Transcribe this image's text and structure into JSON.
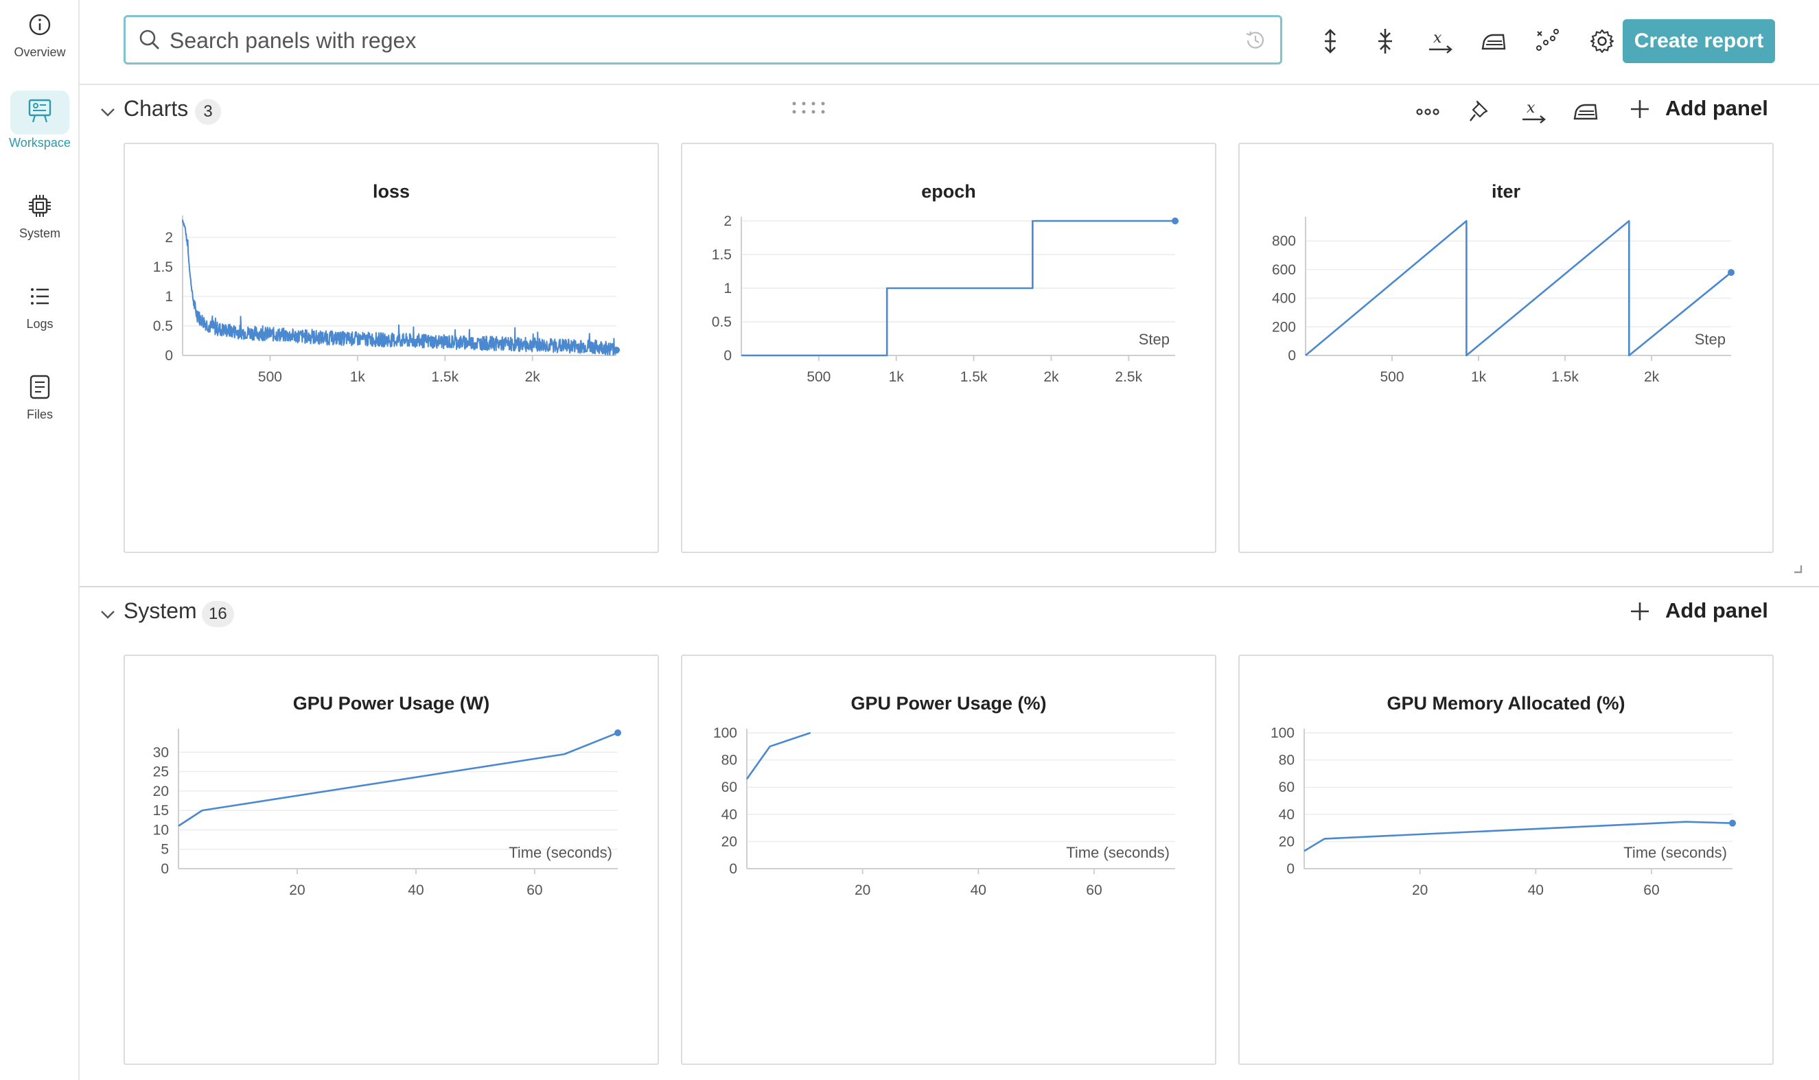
{
  "sidebar": {
    "items": [
      {
        "label": "Overview",
        "icon": "info-icon"
      },
      {
        "label": "Workspace",
        "icon": "workspace-icon",
        "active": true
      },
      {
        "label": "System",
        "icon": "chip-icon"
      },
      {
        "label": "Logs",
        "icon": "list-icon"
      },
      {
        "label": "Files",
        "icon": "file-icon"
      }
    ]
  },
  "toolbar": {
    "search_placeholder": "Search panels with regex",
    "create_report_label": "Create report",
    "accent_color": "#4eaab8"
  },
  "sections": {
    "charts": {
      "title": "Charts",
      "count": "3",
      "add_panel_label": "Add panel"
    },
    "system": {
      "title": "System",
      "count": "16",
      "add_panel_label": "Add panel"
    }
  },
  "chart_data": [
    {
      "id": "loss",
      "type": "line",
      "title": "loss",
      "xlabel": "",
      "ylabel": "",
      "xlim": [
        0,
        2480
      ],
      "ylim": [
        0,
        2.3
      ],
      "xticks": [
        {
          "v": 500,
          "t": "500"
        },
        {
          "v": 1000,
          "t": "1k"
        },
        {
          "v": 1500,
          "t": "1.5k"
        },
        {
          "v": 2000,
          "t": "2k"
        }
      ],
      "yticks": [
        {
          "v": 0,
          "t": "0"
        },
        {
          "v": 0.5,
          "t": "0.5"
        },
        {
          "v": 1,
          "t": "1"
        },
        {
          "v": 1.5,
          "t": "1.5"
        },
        {
          "v": 2,
          "t": "2"
        }
      ],
      "series": [
        {
          "x": [
            0,
            15,
            30,
            45,
            60,
            75,
            90,
            110,
            130,
            160,
            200,
            260,
            320,
            400,
            500,
            600,
            700,
            800,
            900,
            1000,
            1100,
            1200,
            1300,
            1400,
            1500,
            1600,
            1700,
            1800,
            1900,
            2000,
            2100,
            2200,
            2300,
            2380,
            2420,
            2480
          ],
          "y": [
            2.3,
            2.15,
            1.8,
            1.3,
            0.95,
            0.75,
            0.65,
            0.6,
            0.55,
            0.48,
            0.45,
            0.42,
            0.4,
            0.38,
            0.36,
            0.34,
            0.32,
            0.3,
            0.29,
            0.28,
            0.27,
            0.26,
            0.25,
            0.24,
            0.23,
            0.22,
            0.21,
            0.2,
            0.19,
            0.18,
            0.17,
            0.16,
            0.15,
            0.14,
            0.13,
            0.09
          ]
        }
      ],
      "noisy": true,
      "end_marker": true
    },
    {
      "id": "epoch",
      "type": "line",
      "title": "epoch",
      "xlabel": "Step",
      "ylabel": "",
      "xlim": [
        0,
        2800
      ],
      "ylim": [
        0,
        2
      ],
      "xticks": [
        {
          "v": 500,
          "t": "500"
        },
        {
          "v": 1000,
          "t": "1k"
        },
        {
          "v": 1500,
          "t": "1.5k"
        },
        {
          "v": 2000,
          "t": "2k"
        },
        {
          "v": 2500,
          "t": "2.5k"
        }
      ],
      "yticks": [
        {
          "v": 0,
          "t": "0"
        },
        {
          "v": 0.5,
          "t": "0.5"
        },
        {
          "v": 1,
          "t": "1"
        },
        {
          "v": 1.5,
          "t": "1.5"
        },
        {
          "v": 2,
          "t": "2"
        }
      ],
      "series": [
        {
          "x": [
            0,
            940,
            940,
            1880,
            1880,
            2800
          ],
          "y": [
            0,
            0,
            1,
            1,
            2,
            2
          ]
        }
      ],
      "end_marker": true
    },
    {
      "id": "iter",
      "type": "line",
      "title": "iter",
      "xlabel": "Step",
      "ylabel": "",
      "xlim": [
        0,
        2460
      ],
      "ylim": [
        0,
        940
      ],
      "xticks": [
        {
          "v": 500,
          "t": "500"
        },
        {
          "v": 1000,
          "t": "1k"
        },
        {
          "v": 1500,
          "t": "1.5k"
        },
        {
          "v": 2000,
          "t": "2k"
        }
      ],
      "yticks": [
        {
          "v": 0,
          "t": "0"
        },
        {
          "v": 200,
          "t": "200"
        },
        {
          "v": 400,
          "t": "400"
        },
        {
          "v": 600,
          "t": "600"
        },
        {
          "v": 800,
          "t": "800"
        }
      ],
      "series": [
        {
          "x": [
            0,
            930,
            930,
            1870,
            1870,
            2460
          ],
          "y": [
            0,
            940,
            0,
            940,
            0,
            580
          ]
        }
      ],
      "end_marker": true
    },
    {
      "id": "gpu-power-w",
      "type": "line",
      "title": "GPU Power Usage (W)",
      "xlabel": "Time (seconds)",
      "ylabel": "",
      "xlim": [
        0,
        74
      ],
      "ylim": [
        0,
        35
      ],
      "xticks": [
        {
          "v": 20,
          "t": "20"
        },
        {
          "v": 40,
          "t": "40"
        },
        {
          "v": 60,
          "t": "60"
        }
      ],
      "yticks": [
        {
          "v": 0,
          "t": "0"
        },
        {
          "v": 5,
          "t": "5"
        },
        {
          "v": 10,
          "t": "10"
        },
        {
          "v": 15,
          "t": "15"
        },
        {
          "v": 20,
          "t": "20"
        },
        {
          "v": 25,
          "t": "25"
        },
        {
          "v": 30,
          "t": "30"
        }
      ],
      "series": [
        {
          "x": [
            0,
            4,
            65,
            74
          ],
          "y": [
            11,
            15,
            29.5,
            35
          ]
        }
      ],
      "end_marker": true
    },
    {
      "id": "gpu-power-pct",
      "type": "line",
      "title": "GPU Power Usage (%)",
      "xlabel": "Time (seconds)",
      "ylabel": "",
      "xlim": [
        0,
        74
      ],
      "ylim": [
        0,
        100
      ],
      "xticks": [
        {
          "v": 20,
          "t": "20"
        },
        {
          "v": 40,
          "t": "40"
        },
        {
          "v": 60,
          "t": "60"
        }
      ],
      "yticks": [
        {
          "v": 0,
          "t": "0"
        },
        {
          "v": 20,
          "t": "20"
        },
        {
          "v": 40,
          "t": "40"
        },
        {
          "v": 60,
          "t": "60"
        },
        {
          "v": 80,
          "t": "80"
        },
        {
          "v": 100,
          "t": "100"
        }
      ],
      "series": [
        {
          "x": [
            0,
            4,
            11
          ],
          "y": [
            66,
            90,
            100
          ]
        }
      ],
      "end_marker": false
    },
    {
      "id": "gpu-mem-pct",
      "type": "line",
      "title": "GPU Memory Allocated (%)",
      "xlabel": "Time (seconds)",
      "ylabel": "",
      "xlim": [
        0,
        74
      ],
      "ylim": [
        0,
        100
      ],
      "xticks": [
        {
          "v": 20,
          "t": "20"
        },
        {
          "v": 40,
          "t": "40"
        },
        {
          "v": 60,
          "t": "60"
        }
      ],
      "yticks": [
        {
          "v": 0,
          "t": "0"
        },
        {
          "v": 20,
          "t": "20"
        },
        {
          "v": 40,
          "t": "40"
        },
        {
          "v": 60,
          "t": "60"
        },
        {
          "v": 80,
          "t": "80"
        },
        {
          "v": 100,
          "t": "100"
        }
      ],
      "series": [
        {
          "x": [
            0,
            3.5,
            66,
            74
          ],
          "y": [
            13,
            22,
            34.5,
            33.5
          ]
        }
      ],
      "end_marker": true
    }
  ],
  "line_color": "#4a88d0"
}
